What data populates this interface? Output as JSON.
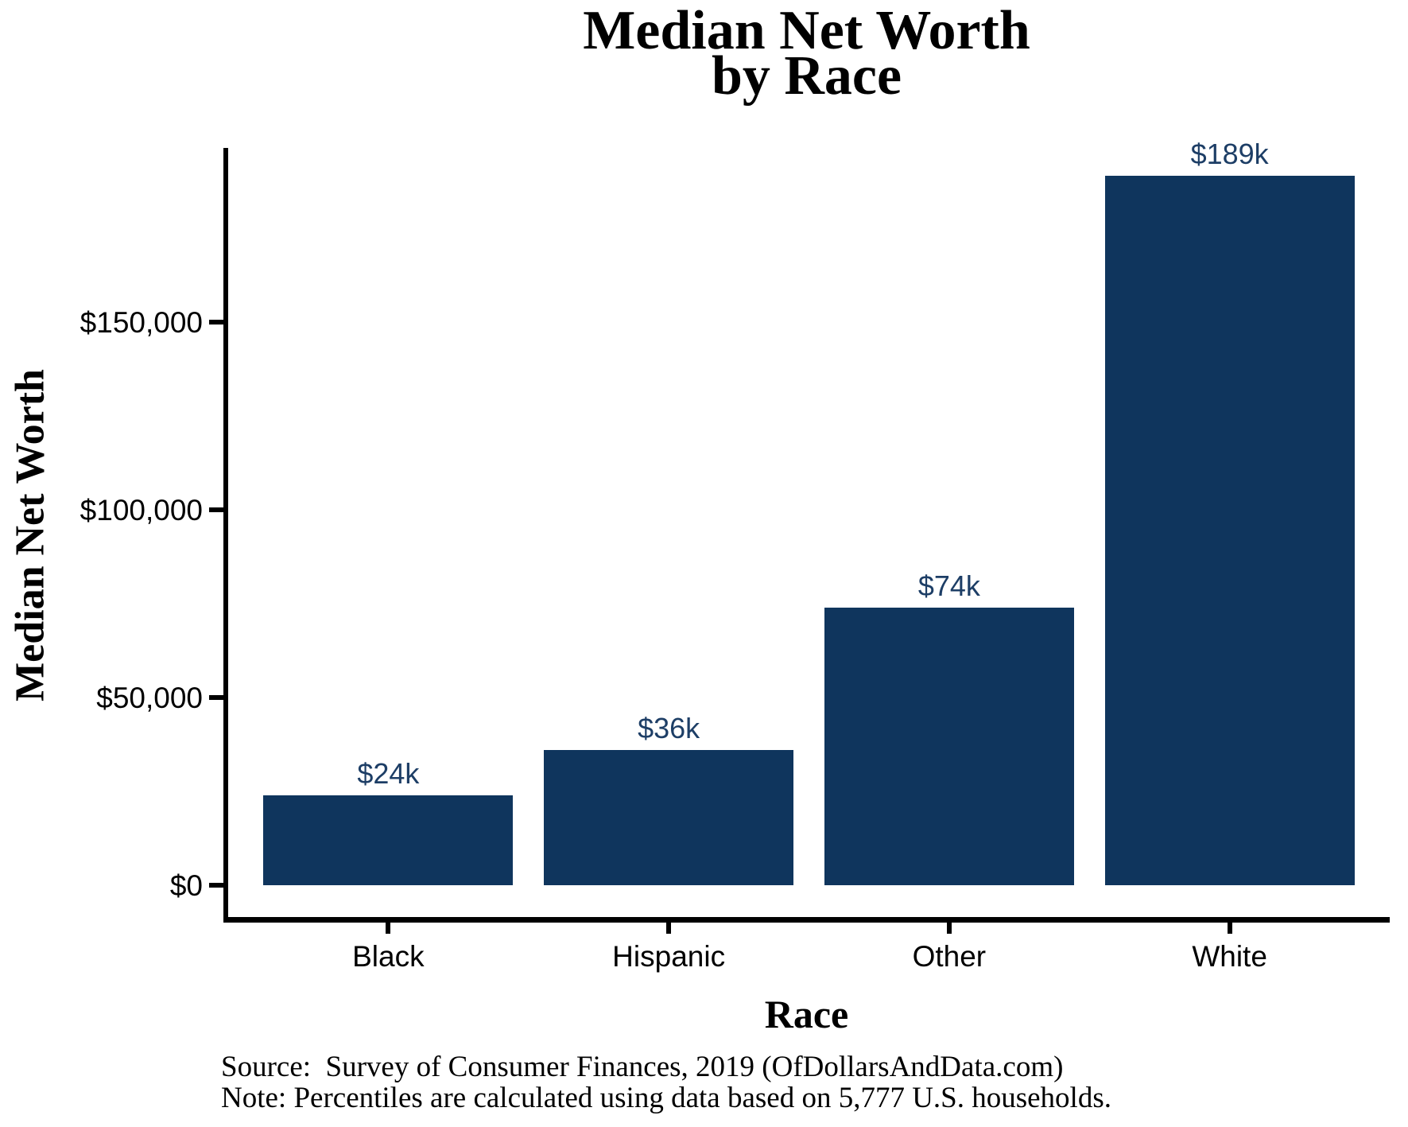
{
  "title": {
    "line1": "Median Net Worth",
    "line2": "by Race"
  },
  "chart_data": {
    "type": "bar",
    "title": "Median Net Worth by Race",
    "categories": [
      "Black",
      "Hispanic",
      "Other",
      "White"
    ],
    "values": [
      24000,
      36000,
      74000,
      189000
    ],
    "bar_labels": [
      "$24k",
      "$36k",
      "$74k",
      "$189k"
    ],
    "xlabel": "Race",
    "ylabel": "Median Net Worth",
    "ylim": [
      0,
      196500
    ],
    "y_ticks": [
      {
        "value": 0,
        "label": "$0"
      },
      {
        "value": 50000,
        "label": "$50,000"
      },
      {
        "value": 100000,
        "label": "$100,000"
      },
      {
        "value": 150000,
        "label": "$150,000"
      }
    ],
    "grid": false,
    "legend": false,
    "colors": {
      "bar": "#0f355d",
      "bar_label": "#1d3e66",
      "axis": "#000000"
    }
  },
  "caption": {
    "source": "Source:  Survey of Consumer Finances, 2019 (OfDollarsAndData.com)",
    "note": "Note: Percentiles are calculated using data based on 5,777 U.S. households."
  }
}
